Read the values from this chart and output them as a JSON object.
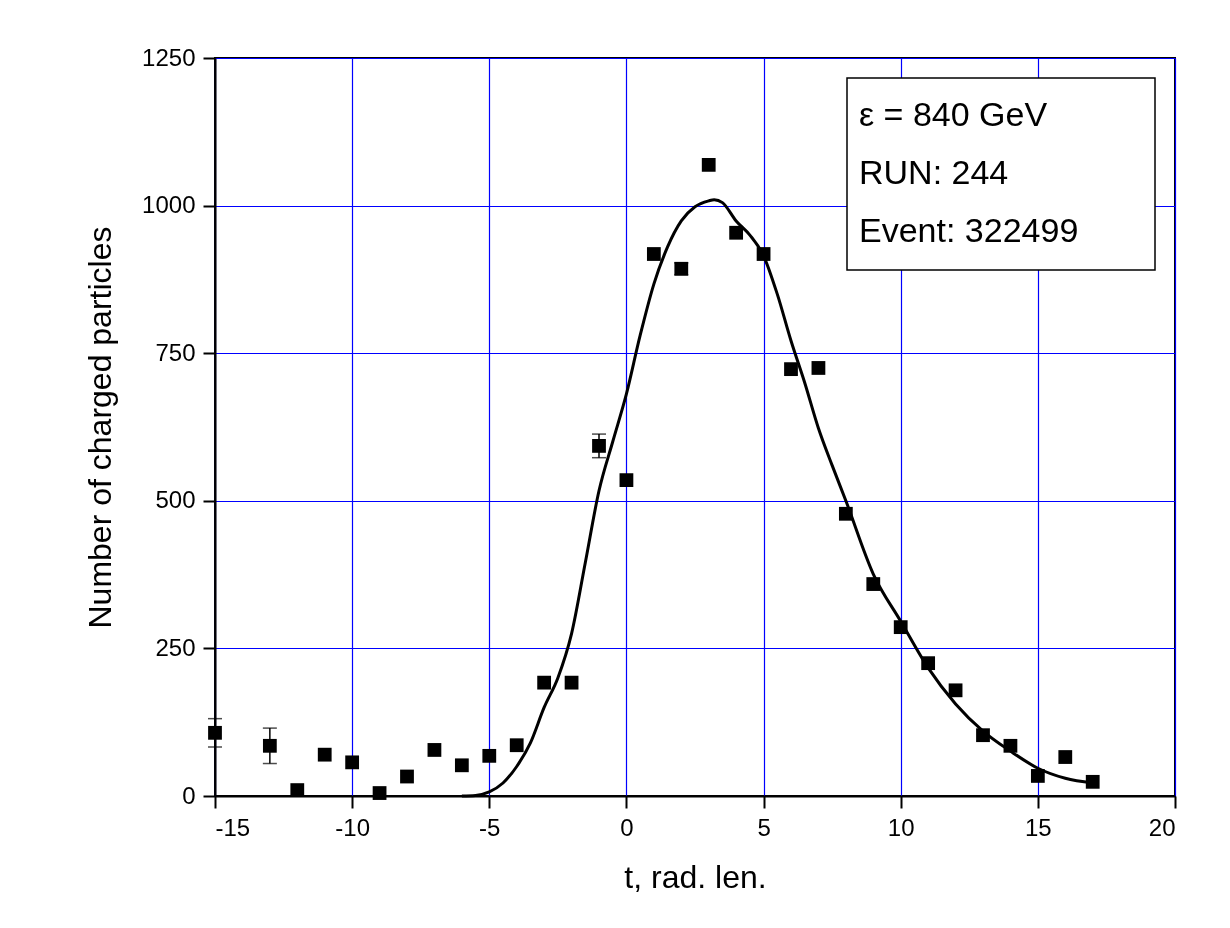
{
  "chart_data": {
    "type": "scatter",
    "xlabel": "t, rad. len.",
    "ylabel": "Number of charged particles",
    "xlim": [
      -15,
      20
    ],
    "xticks": [
      -15,
      -10,
      -5,
      0,
      5,
      10,
      15,
      20
    ],
    "ylim": [
      0,
      1250
    ],
    "yticks": [
      0,
      250,
      500,
      750,
      1000,
      1250
    ],
    "grid": true,
    "marker": "square",
    "annotations": [
      "ε = 840 GeV",
      "RUN: 244",
      "Event: 322499"
    ],
    "series": [
      {
        "color": "#000000",
        "x": [
          -15,
          -13,
          -12,
          -11,
          -10,
          -9,
          -8,
          -7,
          -6,
          -5,
          -4,
          -3,
          -2,
          -1,
          0,
          1,
          2,
          3,
          4,
          5,
          6,
          7,
          8,
          9,
          10,
          11,
          12,
          13,
          14,
          15,
          16,
          17
        ],
        "values": [
          107,
          85,
          10,
          70,
          57,
          5,
          33,
          78,
          52,
          68,
          86,
          192,
          192,
          593,
          535,
          918,
          893,
          1069,
          954,
          918,
          723,
          725,
          478,
          359,
          286,
          225,
          179,
          103,
          85,
          34,
          66,
          24
        ],
        "errors": [
          24,
          30,
          null,
          null,
          null,
          null,
          null,
          null,
          null,
          null,
          null,
          null,
          null,
          20,
          null,
          null,
          10,
          null,
          null,
          null,
          null,
          null,
          null,
          null,
          null,
          null,
          null,
          null,
          null,
          null,
          null,
          null
        ]
      },
      {
        "type": "line",
        "color": "#000000",
        "marker": "none",
        "line_style": "solid",
        "x": [
          -6,
          -5.5,
          -5,
          -4.5,
          -4,
          -3.5,
          -3,
          -2.5,
          -2,
          -1.5,
          -1,
          -0.5,
          0,
          0.5,
          1,
          1.5,
          2,
          2.5,
          3,
          3.2,
          3.5,
          4,
          4.5,
          5,
          5.5,
          6,
          6.5,
          7,
          7.5,
          8,
          9,
          10,
          11,
          12,
          13,
          14,
          15,
          16,
          17
        ],
        "values": [
          0,
          1,
          7,
          22,
          50,
          90,
          150,
          200,
          275,
          395,
          517,
          600,
          681,
          780,
          867,
          930,
          974,
          998,
          1008,
          1010,
          1005,
          974,
          950,
          915,
          850,
          771,
          700,
          623,
          560,
          500,
          376,
          296,
          217,
          156,
          110,
          76,
          47,
          30,
          22
        ]
      }
    ]
  }
}
